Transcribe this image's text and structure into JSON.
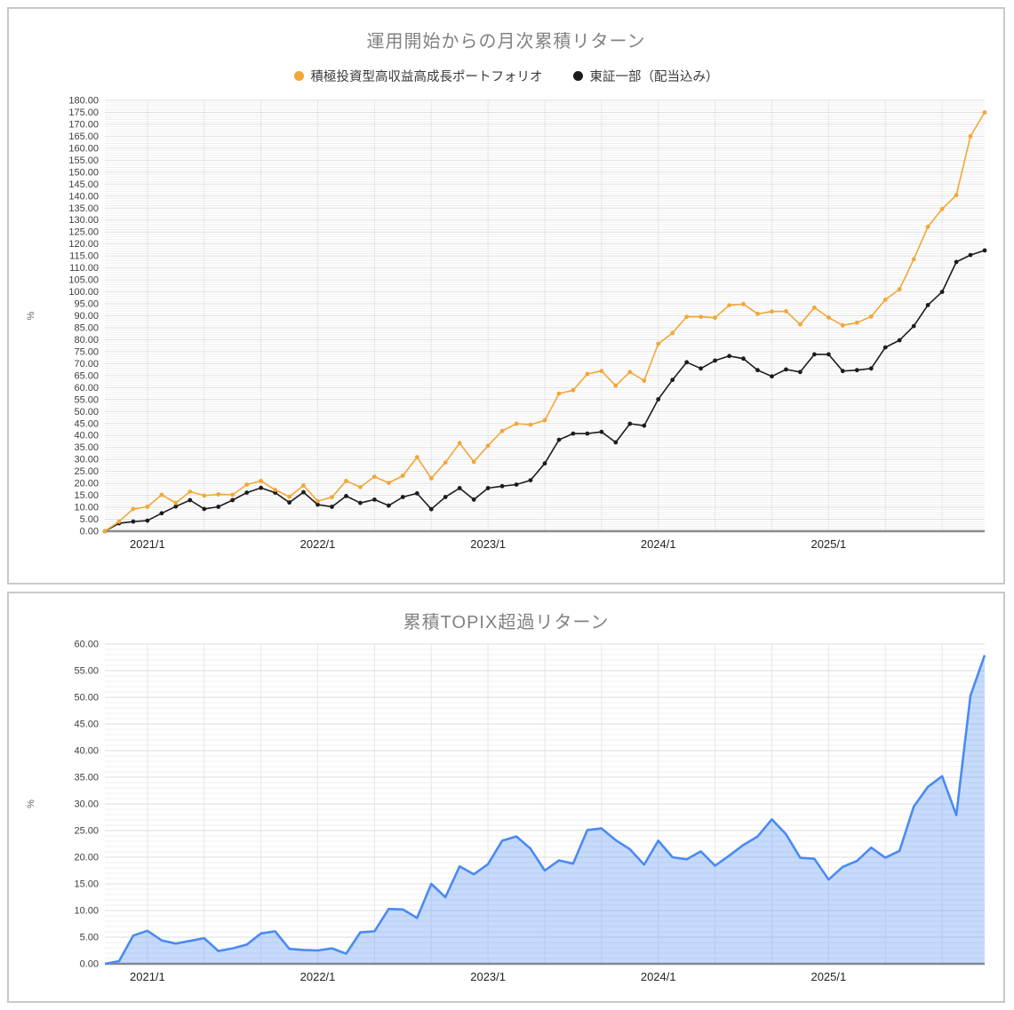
{
  "charts": [
    {
      "type": "line",
      "title": "運用開始からの月次累積リターン",
      "ylabel": "%",
      "ylim": [
        0,
        180
      ],
      "ytick_step": 5,
      "grid": true,
      "legend_position": "top",
      "x": [
        "2020/10",
        "2020/11",
        "2020/12",
        "2021/1",
        "2021/2",
        "2021/3",
        "2021/4",
        "2021/5",
        "2021/6",
        "2021/7",
        "2021/8",
        "2021/9",
        "2021/10",
        "2021/11",
        "2021/12",
        "2022/1",
        "2022/2",
        "2022/3",
        "2022/4",
        "2022/5",
        "2022/6",
        "2022/7",
        "2022/8",
        "2022/9",
        "2022/10",
        "2022/11",
        "2022/12",
        "2023/1",
        "2023/2",
        "2023/3",
        "2023/4",
        "2023/5",
        "2023/6",
        "2023/7",
        "2023/8",
        "2023/9",
        "2023/10",
        "2023/11",
        "2023/12",
        "2024/1",
        "2024/2",
        "2024/3",
        "2024/4",
        "2024/5",
        "2024/6",
        "2024/7",
        "2024/8",
        "2024/9",
        "2024/10",
        "2024/11",
        "2024/12",
        "2025/1",
        "2025/2",
        "2025/3",
        "2025/4",
        "2025/5",
        "2025/6",
        "2025/7",
        "2025/8",
        "2025/9",
        "2025/10",
        "2025/11",
        "2025/12"
      ],
      "xtick_labels": [
        "2021/1",
        "2022/1",
        "2023/1",
        "2024/1",
        "2025/1"
      ],
      "xgrid_every_months": 4,
      "colors": {
        "grid_minor": "#efefef",
        "grid_major": "#dedede",
        "grid_vertical": "#e7e7e7",
        "zero_axis": "#8a8a8a",
        "tick_text": "#3c3c3c",
        "title_text": "#818181"
      },
      "series": [
        {
          "name": "積極投資型高収益高成長ポートフォリオ",
          "color": "#F4A637",
          "values": [
            0.0,
            4.0,
            9.3,
            10.2,
            15.2,
            11.8,
            16.5,
            14.9,
            15.4,
            15.2,
            19.5,
            21.0,
            17.3,
            14.4,
            19.1,
            12.6,
            14.2,
            21.0,
            18.4,
            22.8,
            20.2,
            23.2,
            30.9,
            22.1,
            28.7,
            36.8,
            29.0,
            35.7,
            41.9,
            44.9,
            44.5,
            46.3,
            57.5,
            58.9,
            65.7,
            66.9,
            60.8,
            66.5,
            62.9,
            78.3,
            82.8,
            89.6,
            89.6,
            89.2,
            94.4,
            94.9,
            90.8,
            91.8,
            91.9,
            86.4,
            93.4,
            89.3,
            86.0,
            87.1,
            89.7,
            96.7,
            101.1,
            113.6,
            127.2,
            134.6,
            140.4,
            165.0,
            175.0
          ]
        },
        {
          "name": "東証一部（配当込み）",
          "color": "#1c1c1c",
          "values": [
            0.0,
            3.3,
            4.0,
            4.4,
            7.5,
            10.3,
            13.0,
            9.3,
            10.2,
            13.0,
            16.1,
            18.1,
            16.1,
            12.0,
            16.3,
            11.1,
            10.2,
            14.7,
            11.8,
            13.2,
            10.7,
            14.3,
            15.8,
            9.2,
            14.3,
            18.0,
            13.2,
            18.0,
            18.8,
            19.5,
            21.3,
            28.3,
            38.2,
            40.8,
            40.8,
            41.5,
            37.1,
            44.9,
            44.1,
            55.1,
            63.2,
            70.6,
            68.0,
            71.3,
            73.2,
            72.1,
            67.3,
            64.7,
            67.6,
            66.5,
            73.9,
            73.9,
            66.9,
            67.3,
            68.0,
            76.8,
            79.8,
            85.7,
            94.5,
            100.0,
            112.5,
            115.4,
            117.3
          ]
        }
      ]
    },
    {
      "type": "area",
      "title": "累積TOPIX超過リターン",
      "ylabel": "%",
      "ylim": [
        0,
        60
      ],
      "ytick_step": 5,
      "grid": true,
      "legend_position": "none",
      "x": [
        "2020/10",
        "2020/11",
        "2020/12",
        "2021/1",
        "2021/2",
        "2021/3",
        "2021/4",
        "2021/5",
        "2021/6",
        "2021/7",
        "2021/8",
        "2021/9",
        "2021/10",
        "2021/11",
        "2021/12",
        "2022/1",
        "2022/2",
        "2022/3",
        "2022/4",
        "2022/5",
        "2022/6",
        "2022/7",
        "2022/8",
        "2022/9",
        "2022/10",
        "2022/11",
        "2022/12",
        "2023/1",
        "2023/2",
        "2023/3",
        "2023/4",
        "2023/5",
        "2023/6",
        "2023/7",
        "2023/8",
        "2023/9",
        "2023/10",
        "2023/11",
        "2023/12",
        "2024/1",
        "2024/2",
        "2024/3",
        "2024/4",
        "2024/5",
        "2024/6",
        "2024/7",
        "2024/8",
        "2024/9",
        "2024/10",
        "2024/11",
        "2024/12",
        "2025/1",
        "2025/2",
        "2025/3",
        "2025/4",
        "2025/5",
        "2025/6",
        "2025/7",
        "2025/8",
        "2025/9",
        "2025/10",
        "2025/11",
        "2025/12"
      ],
      "xtick_labels": [
        "2021/1",
        "2022/1",
        "2023/1",
        "2024/1",
        "2025/1"
      ],
      "xgrid_every_months": 4,
      "colors": {
        "grid_minor": "#efefef",
        "grid_major": "#dedede",
        "grid_vertical": "#e7e7e7",
        "zero_axis": "#8a8a8a",
        "tick_text": "#3c3c3c",
        "title_text": "#818181"
      },
      "series": [
        {
          "name": "累積TOPIX超過リターン",
          "color": "#4A8AF4",
          "fill": "rgba(66,133,244,0.30)",
          "values": [
            0.0,
            0.5,
            5.3,
            6.2,
            4.4,
            3.8,
            4.3,
            4.8,
            2.4,
            2.9,
            3.6,
            5.7,
            6.1,
            2.8,
            2.6,
            2.5,
            2.9,
            1.9,
            5.9,
            6.1,
            10.3,
            10.2,
            8.6,
            15.0,
            12.5,
            18.3,
            16.8,
            18.7,
            23.1,
            23.9,
            21.6,
            17.5,
            19.4,
            18.8,
            25.1,
            25.4,
            23.2,
            21.5,
            18.6,
            23.1,
            20.0,
            19.6,
            21.1,
            18.4,
            20.3,
            22.3,
            23.9,
            27.1,
            24.3,
            19.9,
            19.7,
            15.8,
            18.2,
            19.3,
            21.8,
            19.9,
            21.2,
            29.5,
            33.2,
            35.2,
            27.9,
            50.3,
            57.9
          ]
        }
      ]
    }
  ]
}
